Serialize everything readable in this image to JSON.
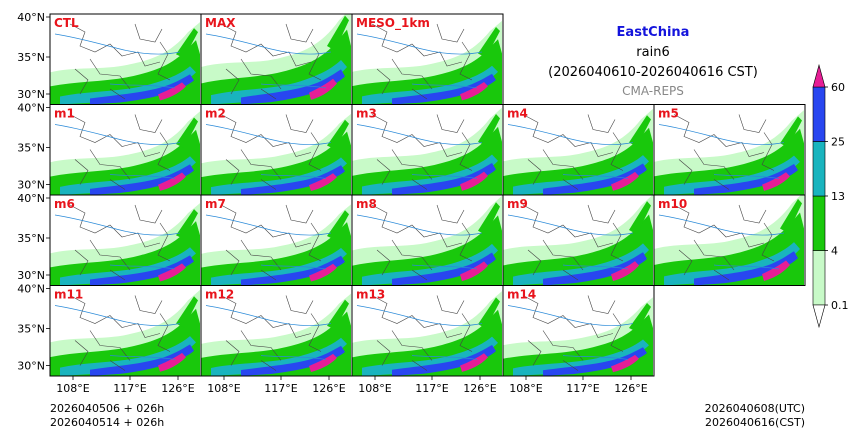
{
  "title": {
    "region": "EastChina",
    "variable": "rain6",
    "period": "(2026040610-2026040616 CST)",
    "source": "CMA-REPS"
  },
  "lat_ticks": [
    "40°N",
    "35°N",
    "30°N"
  ],
  "lon_ticks": [
    "108°E",
    "117°E",
    "126°E"
  ],
  "init_lines": [
    "2026040506  +  026h",
    "2026040514  +  026h"
  ],
  "valid_lines": [
    "2026040608(UTC)",
    "2026040616(CST)"
  ],
  "colorbar": {
    "levels": [
      "0.1",
      "4",
      "13",
      "25",
      "60"
    ],
    "colors": [
      "#c8fac8",
      "#19c80c",
      "#19b4be",
      "#2846f0",
      "#e61e96"
    ]
  },
  "panels": [
    [
      "CTL",
      "MAX",
      "MESO_1km"
    ],
    [
      "m1",
      "m2",
      "m3",
      "m4",
      "m5"
    ],
    [
      "m6",
      "m7",
      "m8",
      "m9",
      "m10"
    ],
    [
      "m11",
      "m12",
      "m13",
      "m14"
    ]
  ],
  "panel_intensity": {
    "CTL": 0.85,
    "MAX": 1.4,
    "MESO_1km": 0.9,
    "m1": 0.9,
    "m2": 0.8,
    "m3": 1.05,
    "m4": 1.0,
    "m5": 0.95,
    "m6": 0.85,
    "m7": 0.8,
    "m8": 1.15,
    "m9": 1.2,
    "m10": 1.3,
    "m11": 1.0,
    "m12": 0.85,
    "m13": 0.95,
    "m14": 0.7
  }
}
